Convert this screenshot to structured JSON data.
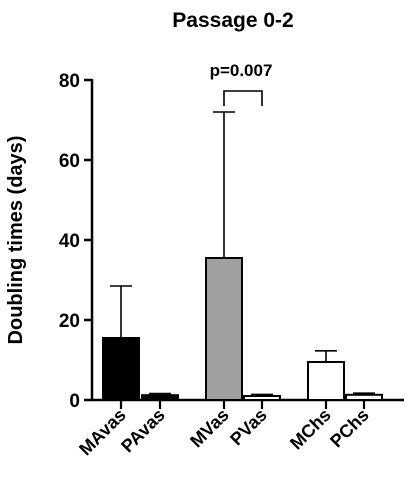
{
  "chart_data": {
    "type": "bar",
    "title": "Passage 0-2",
    "xlabel": "",
    "ylabel": "Doubling times (days)",
    "ylim": [
      0,
      80
    ],
    "yticks": [
      "0",
      "20",
      "40",
      "60",
      "80"
    ],
    "categories": [
      "MAvas",
      "PAvas",
      "MVas",
      "PVas",
      "MChs",
      "PChs"
    ],
    "values": [
      15.5,
      1.2,
      35.5,
      1.0,
      9.5,
      1.3
    ],
    "error_upper": [
      28.5,
      1.6,
      72.0,
      1.4,
      12.3,
      1.7
    ],
    "bar_colors": [
      "#000000",
      "#000000",
      "#a0a0a0",
      "#ffffff",
      "#ffffff",
      "#ffffff"
    ],
    "grid": false,
    "annotation": {
      "text": "p=0.007",
      "between": [
        "MVas",
        "PVas"
      ]
    }
  }
}
